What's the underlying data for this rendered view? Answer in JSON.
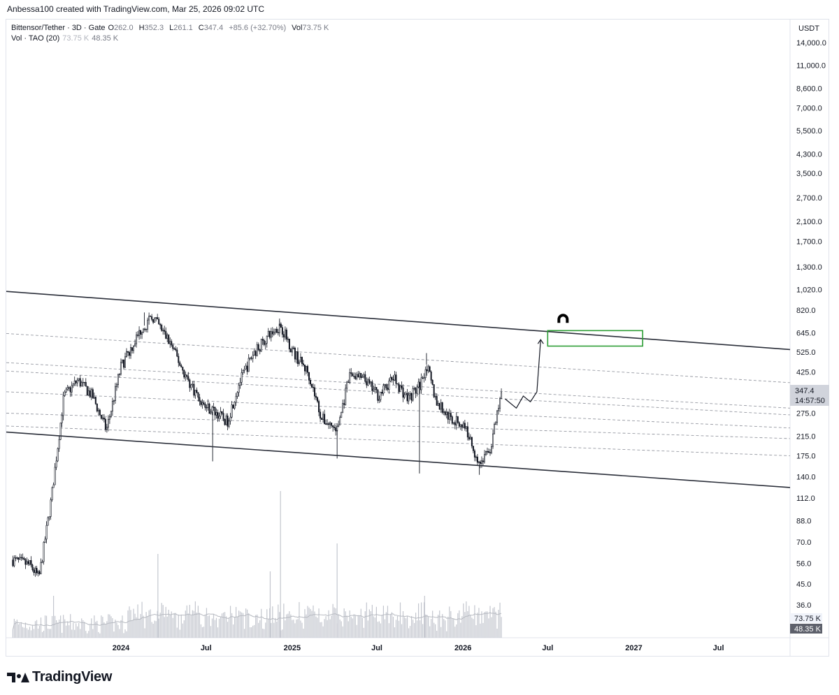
{
  "header": {
    "author": "Anbessa100",
    "created_text": "created with TradingView.com, Mar 25, 2026 09:02 UTC"
  },
  "legend": {
    "symbol": "Bittensor/Tether · 3D · Gate",
    "ohlc": [
      {
        "k": "O",
        "v": "262.0"
      },
      {
        "k": "H",
        "v": "352.3"
      },
      {
        "k": "L",
        "v": "261.1"
      },
      {
        "k": "C",
        "v": "347.4"
      }
    ],
    "change": "+85.6 (+32.70%)",
    "vol_label": "Vol",
    "vol_value": "73.75 K",
    "vol_ma_title": "Vol · TAO (20)",
    "vol_ma_v1": "73.75 K",
    "vol_ma_v2": "48.35 K"
  },
  "price_axis": {
    "currency": "USDT",
    "ticks": [
      "14,000.0",
      "11,000.0",
      "8,600.0",
      "7,000.0",
      "5,500.0",
      "4,300.0",
      "3,500.0",
      "2,700.0",
      "2,100.0",
      "1,700.0",
      "1,300.0",
      "1,020.0",
      "820.0",
      "645.0",
      "525.0",
      "425.0",
      "275.0",
      "215.0",
      "175.0",
      "140.0",
      "112.0",
      "88.0",
      "70.0",
      "56.0",
      "45.0",
      "36.0"
    ],
    "last_price": "347.4",
    "countdown": "14:57:50",
    "vol_badge": "73.75 K",
    "vol_ma_badge": "48.35 K"
  },
  "time_axis": {
    "ticks": [
      "2024",
      "Jul",
      "2025",
      "Jul",
      "2026",
      "Jul",
      "2027",
      "Jul"
    ]
  },
  "footer": {
    "brand": "TradingView"
  },
  "colors": {
    "up": "#089981",
    "candle_ink": "#131722",
    "trendline": "#2a2e39",
    "dashed": "#9598a1",
    "target_box": "#2e9e36",
    "volume": "#c3c6ce",
    "vol_ma": "#b7bac1",
    "last_price_badge": "#d1d4dc"
  },
  "chart_data": {
    "type": "candlestick",
    "title": "Bittensor/Tether · 3D · Gate",
    "y_scale": "log",
    "ylim": [
      36,
      14000
    ],
    "x_range": [
      "2023-05-01",
      "2027-12-01"
    ],
    "price_path": [
      [
        "2023-05-15",
        58
      ],
      [
        "2023-06-20",
        55
      ],
      [
        "2023-07-10",
        48
      ],
      [
        "2023-08-05",
        110
      ],
      [
        "2023-09-01",
        330
      ],
      [
        "2023-10-01",
        390
      ],
      [
        "2023-11-01",
        330
      ],
      [
        "2023-12-01",
        230
      ],
      [
        "2024-01-01",
        450
      ],
      [
        "2024-02-15",
        680
      ],
      [
        "2024-03-10",
        760
      ],
      [
        "2024-04-15",
        580
      ],
      [
        "2024-05-20",
        400
      ],
      [
        "2024-06-25",
        300
      ],
      [
        "2024-07-20",
        280
      ],
      [
        "2024-08-15",
        250
      ],
      [
        "2024-09-10",
        380
      ],
      [
        "2024-10-10",
        520
      ],
      [
        "2024-11-10",
        620
      ],
      [
        "2024-12-07",
        700
      ],
      [
        "2025-01-05",
        520
      ],
      [
        "2025-02-05",
        420
      ],
      [
        "2025-03-05",
        260
      ],
      [
        "2025-04-07",
        230
      ],
      [
        "2025-05-05",
        420
      ],
      [
        "2025-06-05",
        390
      ],
      [
        "2025-07-05",
        330
      ],
      [
        "2025-08-05",
        400
      ],
      [
        "2025-09-05",
        320
      ],
      [
        "2025-10-01",
        370
      ],
      [
        "2025-10-15",
        460
      ],
      [
        "2025-11-05",
        310
      ],
      [
        "2025-12-05",
        260
      ],
      [
        "2026-01-05",
        240
      ],
      [
        "2026-02-05",
        160
      ],
      [
        "2026-03-01",
        190
      ],
      [
        "2026-03-25",
        347.4
      ]
    ],
    "wicks": [
      [
        "2024-02-20",
        800
      ],
      [
        "2024-07-15",
        165
      ],
      [
        "2024-12-05",
        750
      ],
      [
        "2025-04-07",
        170
      ],
      [
        "2025-09-30",
        145
      ],
      [
        "2025-10-15",
        520
      ],
      [
        "2026-02-05",
        143
      ]
    ],
    "volume_ma_length": 20,
    "trendlines": [
      {
        "name": "Upper channel",
        "points": [
          [
            "2023-05-01",
            1000
          ],
          [
            "2027-12-01",
            540
          ]
        ]
      },
      {
        "name": "Lower channel",
        "points": [
          [
            "2023-05-01",
            225
          ],
          [
            "2027-12-01",
            125
          ]
        ]
      }
    ],
    "dashed_levels": [
      {
        "points": [
          [
            "2023-05-01",
            640
          ],
          [
            "2027-12-01",
            380
          ]
        ]
      },
      {
        "points": [
          [
            "2023-05-01",
            470
          ],
          [
            "2027-12-01",
            290
          ]
        ]
      },
      {
        "points": [
          [
            "2023-05-01",
            430
          ],
          [
            "2027-12-01",
            270
          ]
        ]
      },
      {
        "points": [
          [
            "2023-05-01",
            345
          ],
          [
            "2027-12-01",
            235
          ]
        ]
      },
      {
        "points": [
          [
            "2023-05-01",
            275
          ],
          [
            "2027-12-01",
            210
          ]
        ]
      },
      {
        "points": [
          [
            "2023-05-01",
            240
          ],
          [
            "2027-12-01",
            175
          ]
        ]
      }
    ],
    "target_zone": {
      "x": [
        "2026-07-01",
        "2027-01-20"
      ],
      "y": [
        560,
        660
      ]
    },
    "projection_path": [
      [
        "2026-04-01",
        320
      ],
      [
        "2026-04-25",
        290
      ],
      [
        "2026-05-10",
        330
      ],
      [
        "2026-05-25",
        310
      ],
      [
        "2026-06-08",
        345
      ],
      [
        "2026-06-16",
        600
      ]
    ]
  }
}
